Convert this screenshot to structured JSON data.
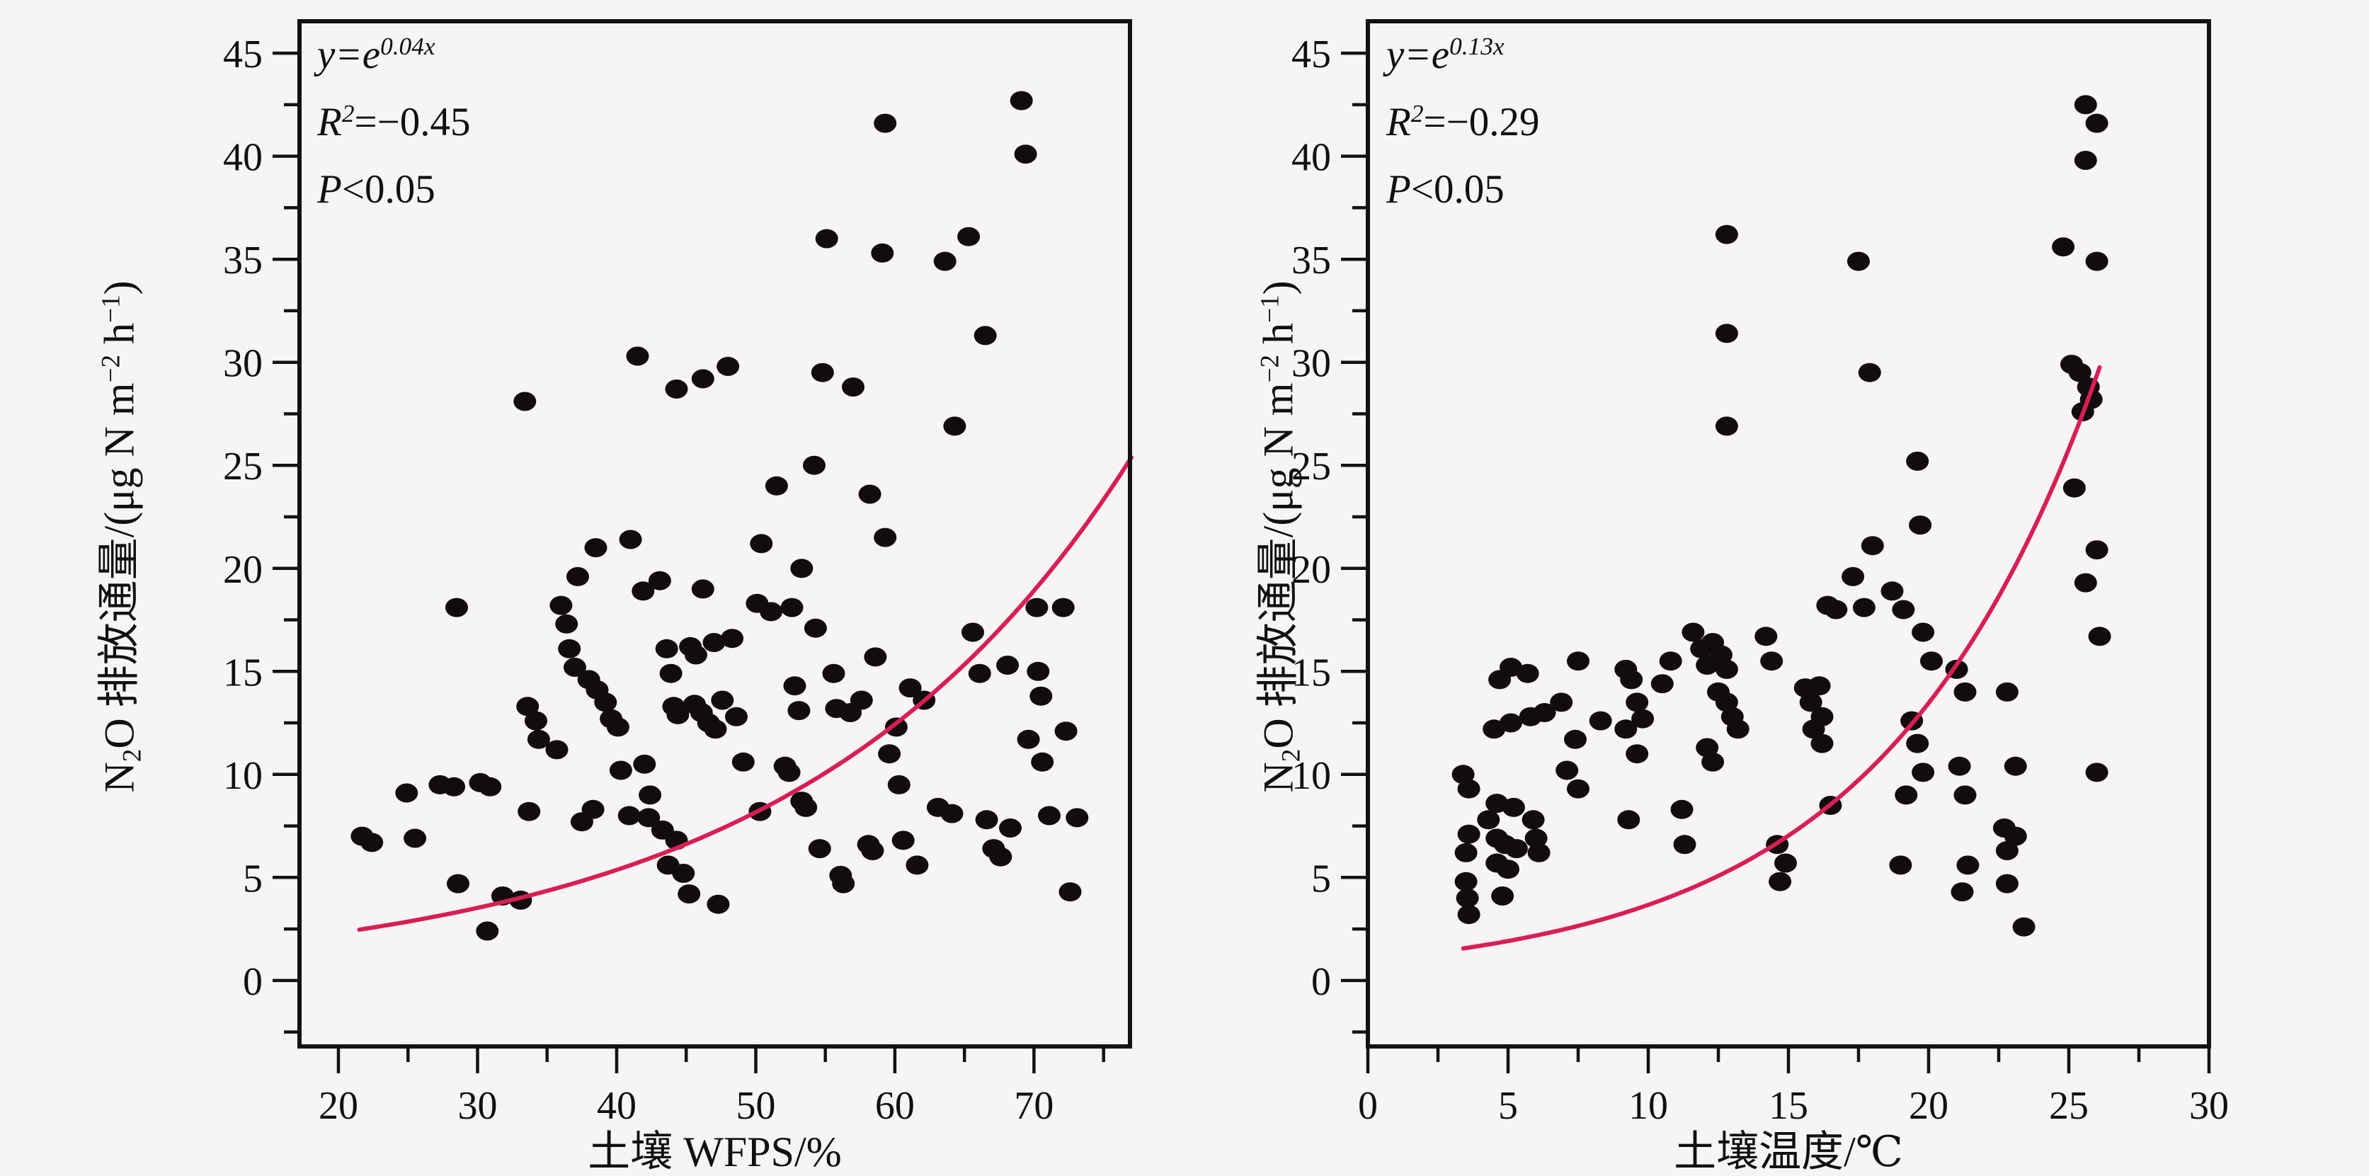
{
  "figure": {
    "background_color": "#f6f4f5",
    "axis_color": "#121212",
    "point_color": "#120c0f",
    "curve_color": "#d81e55",
    "text_color": "#101010"
  },
  "chart_data": [
    {
      "type": "scatter",
      "panel": "left",
      "xlabel": "土壤 WFPS/%",
      "ylabel_parts": {
        "n": "N",
        "sub": "2",
        "mid": "O 排放通量/(μg N m",
        "sup1": "−2",
        "h": " h",
        "sup2": "−1",
        "close": ")"
      },
      "annotation": {
        "eq_base": "y=e",
        "eq_exp": "0.04x",
        "r_base": "R",
        "r_sup": "2",
        "r_val": "=−0.45",
        "p_base": "P",
        "p_val": "<0.05"
      },
      "xlim": [
        17.2,
        76.9
      ],
      "ylim": [
        -3.2,
        46.55
      ],
      "xticks": [
        20,
        30,
        40,
        50,
        60,
        70
      ],
      "xminor": [
        25,
        35,
        45,
        55,
        65,
        75
      ],
      "yticks": [
        0,
        5,
        10,
        15,
        20,
        25,
        30,
        35,
        40,
        45
      ],
      "yminor": [
        -2.5,
        2.5,
        7.5,
        12.5,
        17.5,
        22.5,
        27.5,
        32.5,
        37.5,
        42.5
      ],
      "grid": false,
      "legend": null,
      "fit": {
        "label": "y=e^(0.04x)",
        "a": 1,
        "b": 0.042,
        "x_start": 21.5,
        "x_end": 77.0
      },
      "points": [
        [
          21.7,
          7.0
        ],
        [
          22.4,
          6.7
        ],
        [
          25.5,
          6.9
        ],
        [
          24.9,
          9.1
        ],
        [
          27.3,
          9.5
        ],
        [
          28.3,
          9.4
        ],
        [
          28.5,
          18.1
        ],
        [
          28.6,
          4.7
        ],
        [
          30.2,
          9.6
        ],
        [
          30.9,
          9.4
        ],
        [
          30.7,
          2.4
        ],
        [
          31.8,
          4.1
        ],
        [
          33.1,
          3.9
        ],
        [
          33.4,
          28.1
        ],
        [
          33.6,
          13.3
        ],
        [
          34.2,
          12.6
        ],
        [
          33.7,
          8.2
        ],
        [
          34.4,
          11.7
        ],
        [
          35.7,
          11.2
        ],
        [
          36.0,
          18.2
        ],
        [
          36.4,
          17.3
        ],
        [
          36.6,
          16.1
        ],
        [
          37.0,
          15.2
        ],
        [
          37.2,
          19.6
        ],
        [
          37.5,
          7.7
        ],
        [
          38.3,
          8.3
        ],
        [
          38.0,
          14.6
        ],
        [
          38.6,
          14.1
        ],
        [
          38.5,
          21.0
        ],
        [
          39.2,
          13.5
        ],
        [
          39.6,
          12.7
        ],
        [
          40.1,
          12.3
        ],
        [
          40.3,
          10.2
        ],
        [
          40.9,
          8.0
        ],
        [
          41.0,
          21.4
        ],
        [
          41.5,
          30.3
        ],
        [
          41.9,
          18.9
        ],
        [
          42.0,
          10.5
        ],
        [
          42.4,
          9.0
        ],
        [
          42.3,
          7.9
        ],
        [
          43.3,
          7.3
        ],
        [
          44.3,
          6.8
        ],
        [
          43.7,
          5.6
        ],
        [
          44.8,
          5.2
        ],
        [
          45.2,
          4.2
        ],
        [
          43.1,
          19.4
        ],
        [
          43.6,
          16.1
        ],
        [
          43.9,
          14.9
        ],
        [
          44.1,
          13.3
        ],
        [
          44.4,
          12.9
        ],
        [
          44.3,
          28.7
        ],
        [
          45.3,
          16.2
        ],
        [
          45.7,
          15.8
        ],
        [
          45.6,
          13.4
        ],
        [
          46.1,
          13.0
        ],
        [
          46.2,
          19.0
        ],
        [
          46.2,
          29.2
        ],
        [
          46.6,
          12.5
        ],
        [
          47.1,
          12.2
        ],
        [
          47.0,
          16.4
        ],
        [
          47.3,
          3.7
        ],
        [
          47.6,
          13.6
        ],
        [
          48.0,
          29.8
        ],
        [
          48.3,
          16.6
        ],
        [
          48.6,
          12.8
        ],
        [
          49.1,
          10.6
        ],
        [
          50.4,
          21.2
        ],
        [
          50.1,
          18.3
        ],
        [
          50.3,
          8.2
        ],
        [
          51.5,
          24.0
        ],
        [
          51.1,
          17.9
        ],
        [
          52.1,
          10.4
        ],
        [
          52.4,
          10.1
        ],
        [
          52.6,
          18.1
        ],
        [
          52.8,
          14.3
        ],
        [
          53.1,
          13.1
        ],
        [
          53.3,
          8.7
        ],
        [
          53.6,
          8.4
        ],
        [
          53.3,
          20.0
        ],
        [
          54.2,
          25.0
        ],
        [
          54.3,
          17.1
        ],
        [
          54.6,
          6.4
        ],
        [
          55.1,
          36.0
        ],
        [
          54.8,
          29.5
        ],
        [
          57.0,
          28.8
        ],
        [
          55.6,
          14.9
        ],
        [
          55.8,
          13.2
        ],
        [
          56.1,
          5.1
        ],
        [
          56.3,
          4.7
        ],
        [
          56.8,
          13.0
        ],
        [
          58.2,
          23.6
        ],
        [
          59.3,
          21.5
        ],
        [
          57.6,
          13.6
        ],
        [
          58.1,
          6.6
        ],
        [
          58.4,
          6.3
        ],
        [
          58.6,
          15.7
        ],
        [
          59.1,
          35.3
        ],
        [
          59.3,
          41.6
        ],
        [
          59.6,
          11.0
        ],
        [
          60.1,
          12.3
        ],
        [
          60.3,
          9.5
        ],
        [
          60.6,
          6.8
        ],
        [
          61.1,
          14.2
        ],
        [
          61.6,
          5.6
        ],
        [
          62.1,
          13.6
        ],
        [
          63.1,
          8.4
        ],
        [
          63.6,
          34.9
        ],
        [
          64.3,
          26.9
        ],
        [
          64.1,
          8.1
        ],
        [
          66.5,
          31.3
        ],
        [
          65.3,
          36.1
        ],
        [
          65.6,
          16.9
        ],
        [
          66.1,
          14.9
        ],
        [
          66.6,
          7.8
        ],
        [
          67.1,
          6.4
        ],
        [
          67.6,
          6.0
        ],
        [
          68.1,
          15.3
        ],
        [
          68.3,
          7.4
        ],
        [
          69.1,
          42.7
        ],
        [
          69.4,
          40.1
        ],
        [
          69.6,
          11.7
        ],
        [
          70.2,
          18.1
        ],
        [
          70.3,
          15.0
        ],
        [
          70.5,
          13.8
        ],
        [
          70.6,
          10.6
        ],
        [
          71.1,
          8.0
        ],
        [
          72.1,
          18.1
        ],
        [
          72.3,
          12.1
        ],
        [
          72.6,
          4.3
        ],
        [
          73.1,
          7.9
        ]
      ]
    },
    {
      "type": "scatter",
      "panel": "right",
      "xlabel": "土壤温度/℃",
      "ylabel_parts": {
        "n": "N",
        "sub": "2",
        "mid": "O 排放通量/(μg N m",
        "sup1": "−2",
        "h": " h",
        "sup2": "−1",
        "close": ")"
      },
      "annotation": {
        "eq_base": "y=e",
        "eq_exp": "0.13x",
        "r_base": "R",
        "r_sup": "2",
        "r_val": "=−0.29",
        "p_base": "P",
        "p_val": "<0.05"
      },
      "xlim": [
        0,
        30
      ],
      "ylim": [
        -3.2,
        46.55
      ],
      "xticks": [
        0,
        5,
        10,
        15,
        20,
        25,
        30
      ],
      "xminor": [
        2.5,
        7.5,
        12.5,
        17.5,
        22.5,
        27.5
      ],
      "yticks": [
        0,
        5,
        10,
        15,
        20,
        25,
        30,
        35,
        40,
        45
      ],
      "yminor": [
        -2.5,
        2.5,
        7.5,
        12.5,
        17.5,
        22.5,
        27.5,
        32.5,
        37.5,
        42.5
      ],
      "grid": false,
      "legend": null,
      "fit": {
        "label": "y=e^(0.13x)",
        "a": 1,
        "b": 0.13,
        "x_start": 3.4,
        "x_end": 26.1
      },
      "points": [
        [
          3.4,
          10.0
        ],
        [
          3.6,
          9.3
        ],
        [
          3.6,
          7.1
        ],
        [
          3.5,
          6.2
        ],
        [
          3.5,
          4.8
        ],
        [
          3.55,
          4.0
        ],
        [
          3.6,
          3.2
        ],
        [
          4.3,
          7.8
        ],
        [
          4.6,
          8.6
        ],
        [
          5.2,
          8.4
        ],
        [
          4.6,
          6.9
        ],
        [
          4.9,
          6.6
        ],
        [
          5.3,
          6.4
        ],
        [
          4.6,
          5.7
        ],
        [
          5.0,
          5.4
        ],
        [
          4.8,
          4.1
        ],
        [
          5.9,
          7.8
        ],
        [
          6.0,
          6.9
        ],
        [
          6.1,
          6.2
        ],
        [
          4.7,
          14.6
        ],
        [
          5.1,
          15.2
        ],
        [
          5.7,
          14.9
        ],
        [
          4.5,
          12.2
        ],
        [
          5.1,
          12.5
        ],
        [
          5.8,
          12.8
        ],
        [
          6.3,
          13.0
        ],
        [
          6.9,
          13.5
        ],
        [
          7.5,
          15.5
        ],
        [
          7.4,
          11.7
        ],
        [
          7.1,
          10.2
        ],
        [
          7.5,
          9.3
        ],
        [
          8.3,
          12.6
        ],
        [
          9.2,
          15.1
        ],
        [
          9.4,
          14.6
        ],
        [
          9.6,
          13.5
        ],
        [
          9.8,
          12.7
        ],
        [
          9.2,
          12.2
        ],
        [
          9.6,
          11.0
        ],
        [
          9.3,
          7.8
        ],
        [
          10.8,
          15.5
        ],
        [
          10.5,
          14.4
        ],
        [
          11.2,
          8.3
        ],
        [
          11.3,
          6.6
        ],
        [
          11.6,
          16.9
        ],
        [
          11.9,
          16.1
        ],
        [
          12.1,
          15.3
        ],
        [
          12.3,
          16.4
        ],
        [
          12.6,
          15.8
        ],
        [
          12.8,
          15.1
        ],
        [
          12.5,
          14.0
        ],
        [
          12.8,
          13.5
        ],
        [
          13.0,
          12.8
        ],
        [
          13.2,
          12.2
        ],
        [
          12.1,
          11.3
        ],
        [
          12.3,
          10.6
        ],
        [
          12.8,
          36.2
        ],
        [
          12.8,
          31.4
        ],
        [
          12.8,
          26.9
        ],
        [
          14.2,
          16.7
        ],
        [
          14.4,
          15.5
        ],
        [
          14.6,
          6.6
        ],
        [
          14.9,
          5.7
        ],
        [
          14.7,
          4.8
        ],
        [
          15.6,
          14.2
        ],
        [
          16.1,
          14.3
        ],
        [
          15.8,
          13.5
        ],
        [
          16.2,
          12.8
        ],
        [
          15.9,
          12.2
        ],
        [
          16.2,
          11.5
        ],
        [
          16.4,
          18.2
        ],
        [
          16.7,
          18.0
        ],
        [
          16.5,
          8.5
        ],
        [
          17.5,
          34.9
        ],
        [
          17.9,
          29.5
        ],
        [
          18.0,
          21.1
        ],
        [
          17.3,
          19.6
        ],
        [
          17.7,
          18.1
        ],
        [
          18.7,
          18.9
        ],
        [
          19.1,
          18.0
        ],
        [
          19.6,
          25.2
        ],
        [
          19.7,
          22.1
        ],
        [
          19.8,
          16.9
        ],
        [
          19.4,
          12.6
        ],
        [
          19.6,
          11.5
        ],
        [
          19.8,
          10.1
        ],
        [
          19.2,
          9.0
        ],
        [
          19.0,
          5.6
        ],
        [
          20.1,
          15.5
        ],
        [
          21.0,
          15.1
        ],
        [
          21.3,
          14.0
        ],
        [
          21.1,
          10.4
        ],
        [
          21.3,
          9.0
        ],
        [
          21.4,
          5.6
        ],
        [
          21.2,
          4.3
        ],
        [
          22.8,
          14.0
        ],
        [
          23.1,
          10.4
        ],
        [
          22.7,
          7.4
        ],
        [
          23.1,
          7.0
        ],
        [
          22.8,
          6.3
        ],
        [
          22.8,
          4.7
        ],
        [
          23.4,
          2.6
        ],
        [
          24.8,
          35.6
        ],
        [
          25.6,
          42.5
        ],
        [
          26.0,
          41.6
        ],
        [
          25.6,
          39.8
        ],
        [
          26.0,
          34.9
        ],
        [
          25.1,
          29.9
        ],
        [
          25.4,
          29.5
        ],
        [
          25.7,
          28.8
        ],
        [
          25.8,
          28.2
        ],
        [
          25.5,
          27.6
        ],
        [
          25.2,
          23.9
        ],
        [
          26.0,
          20.9
        ],
        [
          25.6,
          19.3
        ],
        [
          26.1,
          16.7
        ],
        [
          26.0,
          10.1
        ]
      ]
    }
  ]
}
